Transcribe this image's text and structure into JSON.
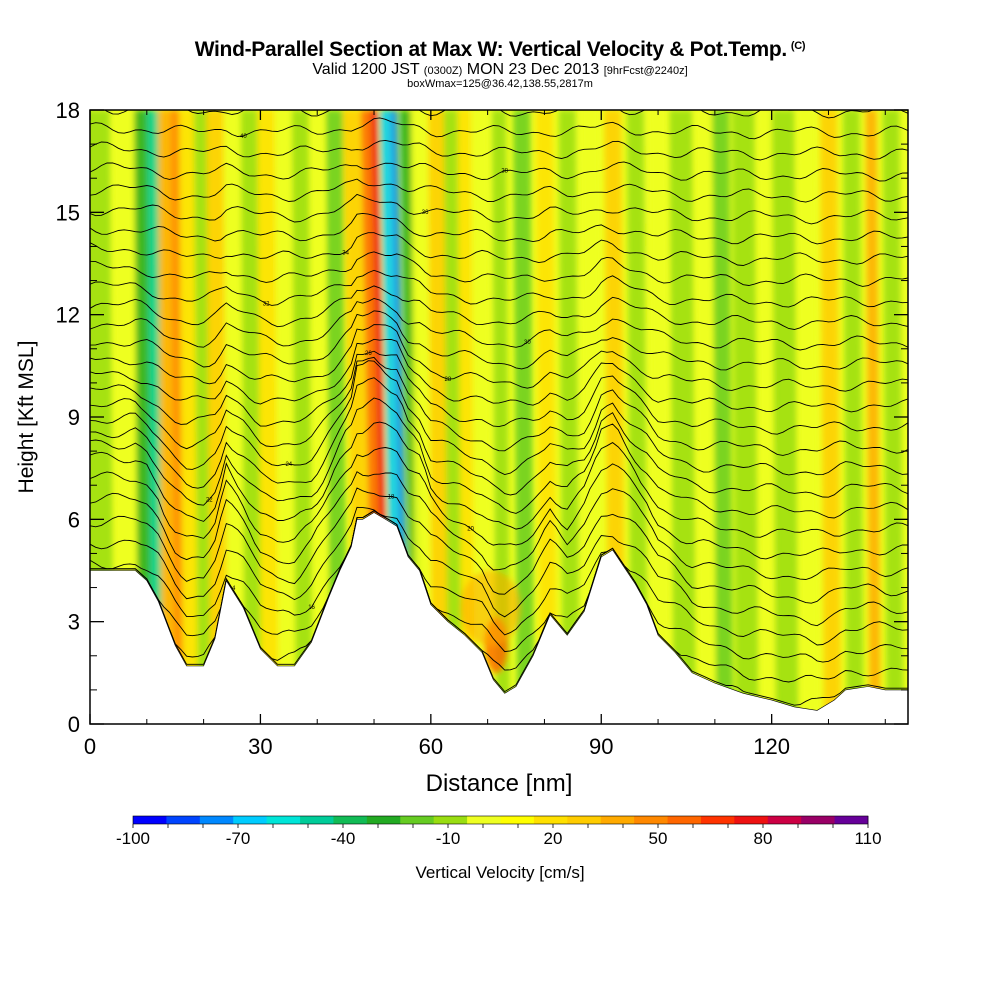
{
  "header": {
    "title_main": "Wind-Parallel Section at Max W: Vertical Velocity & Pot.Temp.",
    "title_mark": "(C)",
    "valid_prefix": "Valid 1200 JST",
    "valid_zone": "(0300Z)",
    "valid_date": "MON 23 Dec 2013",
    "valid_fcst": "[9hrFcst@2240z]",
    "box_info": "boxWmax=125@36.42,138.55,2817m"
  },
  "chart_data": {
    "type": "heatmap",
    "title": "Wind-Parallel Section at Max W: Vertical Velocity & Pot.Temp.",
    "xlabel": "Distance [nm]",
    "ylabel": "Height [Kft MSL]",
    "xlim": [
      0,
      144
    ],
    "ylim": [
      0,
      18
    ],
    "x_ticks": [
      0,
      30,
      60,
      90,
      120
    ],
    "y_ticks": [
      0,
      3,
      6,
      9,
      12,
      15,
      18
    ],
    "colorbar": {
      "label": "Vertical Velocity [cm/s]",
      "tick_labels": [
        "-100",
        "-70",
        "-40",
        "-10",
        "20",
        "50",
        "80",
        "110"
      ],
      "tick_values": [
        -100,
        -70,
        -40,
        -10,
        20,
        50,
        80,
        110
      ],
      "levels": [
        -100,
        -90,
        -80,
        -70,
        -60,
        -50,
        -40,
        -30,
        -20,
        -10,
        0,
        10,
        20,
        30,
        40,
        50,
        60,
        70,
        80,
        90,
        100,
        110
      ],
      "colors": [
        "#0000ff",
        "#0044ff",
        "#0088ff",
        "#00ccff",
        "#00e5d8",
        "#00cc99",
        "#11bb55",
        "#22aa22",
        "#66cc22",
        "#99dd11",
        "#eeff22",
        "#ffff00",
        "#ffe000",
        "#ffcc00",
        "#ffaa00",
        "#ff8800",
        "#ff6600",
        "#ff3300",
        "#ee1111",
        "#cc0044",
        "#990066",
        "#660099"
      ]
    },
    "terrain_profile": {
      "x": [
        0,
        4,
        8,
        10,
        12,
        15,
        17,
        20,
        22,
        24,
        27,
        30,
        33,
        36,
        39,
        42,
        44,
        46,
        47,
        48,
        50,
        52,
        54,
        56,
        58,
        60,
        63,
        66,
        69,
        71,
        73,
        75,
        78,
        81,
        84,
        87,
        90,
        92,
        94,
        96,
        98,
        100,
        103,
        106,
        110,
        115,
        120,
        124,
        128,
        131,
        133,
        137,
        140,
        144
      ],
      "height_kft": [
        4.5,
        4.5,
        4.5,
        4.2,
        3.6,
        2.3,
        1.7,
        1.7,
        2.5,
        4.2,
        3.4,
        2.2,
        1.7,
        1.7,
        2.4,
        3.7,
        4.5,
        5.2,
        6.0,
        6.0,
        6.2,
        6.0,
        5.8,
        4.9,
        4.5,
        3.5,
        3.0,
        2.6,
        2.1,
        1.3,
        0.9,
        1.1,
        2.0,
        3.2,
        2.6,
        3.3,
        4.9,
        5.1,
        4.6,
        4.1,
        3.5,
        2.6,
        2.1,
        1.5,
        1.2,
        0.9,
        0.7,
        0.5,
        0.4,
        0.7,
        1.0,
        1.1,
        1.0,
        1.0
      ]
    },
    "isentrope_labels": [
      "14",
      "16",
      "18",
      "20",
      "22",
      "24",
      "26",
      "28",
      "30",
      "32",
      "34",
      "36",
      "38",
      "40",
      "42"
    ]
  }
}
